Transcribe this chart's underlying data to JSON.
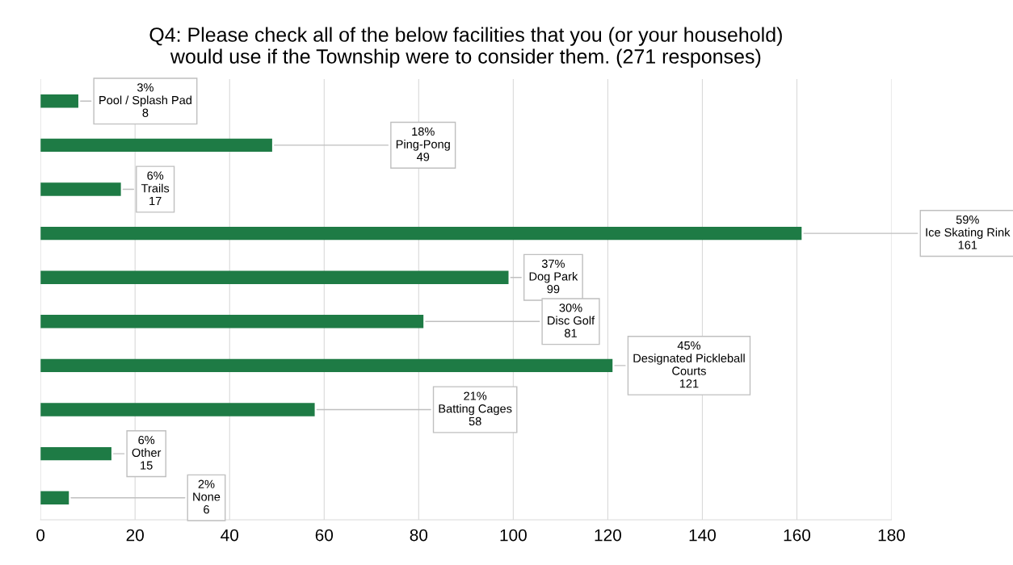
{
  "chart_data": {
    "type": "bar",
    "orientation": "horizontal",
    "title": "Q4: Please check all of the below facilities that you (or your household)\nwould use if the Township were to consider them. (271 responses)",
    "categories": [
      null,
      null,
      null,
      null,
      null,
      null,
      null,
      null,
      null,
      null
    ],
    "values": [
      8,
      49,
      17,
      161,
      99,
      81,
      121,
      58,
      15,
      6
    ],
    "value_labels": [
      "3%\nPool / Splash Pad\n8",
      "18%\nPing-Pong\n49",
      "6%\nTrails\n17",
      "59%\nIce Skating Rink\n161",
      "37%\nDog Park\n99",
      "30%\nDisc Golf\n81",
      "45%\nDesignated Pickleball\nCourts\n121",
      "21%\nBatting Cages\n58",
      "6%\nOther\n15",
      "2%\nNone\n6"
    ],
    "color": "#1e7b45",
    "xlim": [
      0,
      180
    ],
    "xticks": [
      0,
      20,
      40,
      60,
      80,
      100,
      120,
      140,
      160,
      180
    ],
    "grid": "x",
    "tick_labels": "x",
    "legend": false
  }
}
